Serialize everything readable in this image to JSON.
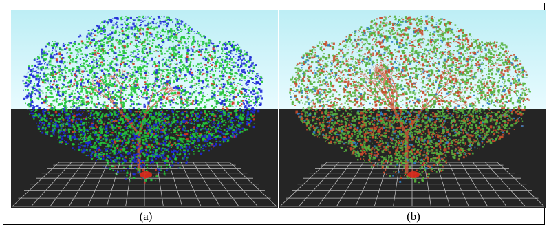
{
  "figure": {
    "panels": [
      {
        "id": "a",
        "caption": "(a)",
        "inset_label": "(b)",
        "foliage_colors": [
          "#23c63a",
          "#1f2bd8",
          "#d83524"
        ],
        "tone": "blue-green"
      },
      {
        "id": "b",
        "caption": "(b)",
        "foliage_colors": [
          "#57b13e",
          "#c94b2b",
          "#2f7ec2"
        ],
        "tone": "green-red"
      }
    ],
    "colors": {
      "sky_top": "#bdeef5",
      "sky_bottom": "#e8fbff",
      "ground": "#252525",
      "grid": "#d8d8d8",
      "trunk": "#d15d3d"
    }
  }
}
